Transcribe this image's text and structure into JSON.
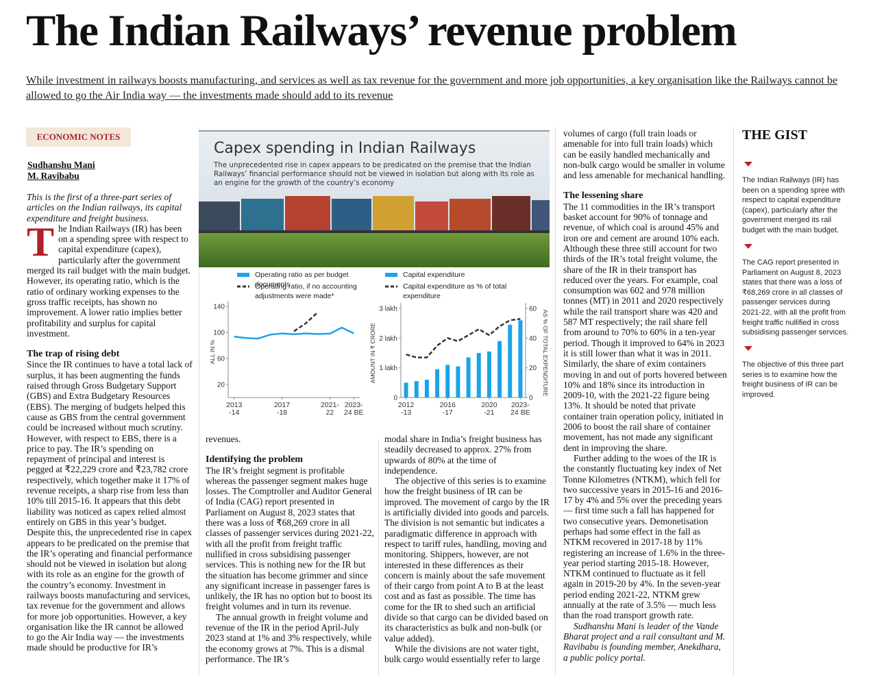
{
  "header": {
    "title": "The Indian Railways’ revenue problem",
    "subtitle": "While investment in railways boosts manufacturing, and services as well as tax revenue for the government and more job opportunities, a key organisation like the Railways cannot be allowed to go the Air India way — the investments made should add to its revenue"
  },
  "tag": "ECONOMIC NOTES",
  "authors": [
    "Sudhanshu Mani",
    "M. Ravibabu"
  ],
  "columns": [
    [
      {
        "italic": "This is the first of a three-part series of articles on the Indian railways, its capital expenditure and freight business."
      },
      {
        "dropcap": "T",
        "paragraph": "he Indian Railways (IR) has been on a spending spree with respect to capital expenditure (capex), particularly after the government merged its rail budget with the main budget. However, its operating ratio, which is the ratio of ordinary working expenses to the gross traffic receipts, has shown no improvement. A lower ratio implies better profitability and surplus for capital investment."
      },
      {
        "heading": "The trap of rising debt"
      },
      {
        "paragraph": "Since the IR continues to have a total lack of surplus, it has been augmenting the funds raised through Gross Budgetary Support (GBS) and Extra Budgetary Resources (EBS). The merging of budgets helped this cause as GBS from the central government could be increased without much scrutiny. However, with respect to EBS, there is a price to pay. The IR’s spending on repayment of principal and interest is pegged at ₹22,229 crore and ₹23,782 crore respectively, which together make it 17% of revenue receipts, a sharp rise from less than 10% till 2015-16. It appears that this debt liability was noticed as capex relied almost entirely on GBS in this year’s budget. Despite this, the unprecedented rise in capex appears to be predicated on the premise that the IR’s operating and financial performance should not be viewed in isolation but along with its role as an engine for the growth of the country’s economy. Investment in railways boosts manufacturing and services, tax revenue for the government and allows for more job opportunities. However, a key organisation like the IR cannot be allowed to go the Air India way — the investments made should be productive for IR’s"
      }
    ],
    [
      {
        "paragraph": "revenues."
      },
      {
        "heading": "Identifying the problem"
      },
      {
        "paragraph": "The IR’s freight segment is profitable whereas the passenger segment makes huge losses. The Comptroller and Auditor General of India (CAG) report presented in Parliament on August 8, 2023 states that there was a loss of ₹68,269 crore in all classes of passenger services during 2021-22, with all the profit from freight traffic nullified in cross subsidising passenger services. This is nothing new for the IR but the situation has become grimmer and since any significant increase in passenger fares is unlikely, the IR has no option but to boost its freight volumes and in turn its revenue."
      },
      {
        "paragraph": "The annual growth in freight volume and revenue of the IR in the period April-July 2023 stand at 1% and 3% respectively, while the economy grows at 7%. This is a dismal performance. The IR’s"
      }
    ],
    [
      {
        "paragraph": "modal share in India’s freight business has steadily decreased to approx. 27% from upwards of 80% at the time of independence."
      },
      {
        "paragraph": "The objective of this series is to examine how the freight business of IR can be improved. The movement of cargo by the IR is artificially divided into goods and parcels. The division is not semantic but indicates a paradigmatic difference in approach with respect to tariff rules, handling, moving and monitoring. Shippers, however, are not interested in these differences as their concern is mainly about the safe movement of their cargo from point A to B at the least cost and as fast as possible. The time has come for the IR to shed such an artificial divide so that cargo can be divided based on its characteristics as bulk and non-bulk (or value added)."
      },
      {
        "paragraph": "While the divisions are not water tight, bulk cargo would essentially refer to large"
      }
    ],
    [
      {
        "paragraph": "volumes of cargo (full train loads or amenable for into full train loads) which can be easily handled mechanically and non-bulk cargo would be smaller in volume and less amenable for mechanical handling."
      },
      {
        "heading": "The lessening share"
      },
      {
        "paragraph": "The 11 commodities in the IR’s transport basket account for 90% of tonnage and revenue, of which coal is around 45% and iron ore and cement are around 10% each. Although these three still account for two thirds of the IR’s total freight volume, the share of the IR in their transport has reduced over the years. For example, coal consumption was 602 and 978 million tonnes (MT) in 2011 and 2020 respectively while the rail transport share was 420 and 587 MT respectively; the rail share fell from around to 70% to 60% in a ten-year period. Though it improved to 64% in 2023 it is still lower than what it was in 2011. Similarly, the share of exim containers moving in and out of ports hovered between 10% and 18% since its introduction in 2009-10, with the 2021-22 figure being 13%. It should be noted that private container train operation policy, initiated in 2006 to boost the rail share of container movement, has not made any significant dent in improving the share."
      },
      {
        "paragraph": "Further adding to the woes of the IR is the constantly fluctuating key index of Net Tonne Kilometres (NTKM), which fell for two successive years in 2015-16 and 2016-17 by 4% and 5% over the preceding years — first time such a fall has happened for two consecutive years. Demonetisation perhaps had some effect in the fall as NTKM recovered in 2017-18 by 11% registering an increase of 1.6% in the three-year period starting 2015-18. However, NTKM continued to fluctuate as it fell again in 2019-20 by 4%. In the seven-year period ending 2021-22, NTKM grew annually at the rate of 3.5% — much less than the road transport growth rate."
      },
      {
        "italic": "Sudhanshu Mani is leader of the Vande Bharat project and a rail consultant and M. Ravibabu is founding member, Anekdhara, a public policy portal."
      }
    ]
  ],
  "gist": {
    "title": "THE GIST",
    "items": [
      "The Indian Railways (IR) has been on a spending spree with respect to capital expenditure (capex), particularly after the government merged its rail budget with the main budget.",
      "The CAG report presented in Parliament on August 8, 2023 states that there was a loss of ₹68,269 crore in all classes of passenger services during 2021-22, with all the profit from freight traffic nullified in cross subsidising passenger services.",
      "The objective of this three part series is to examine how the freight business of IR can be improved."
    ]
  },
  "chart": {
    "title": "Capex spending in Indian Railways",
    "subtitle": "The unprecedented rise in capex appears to be predicated on the premise that the Indian Railways’ financial performance should not be viewed in isolation but along with its role as an engine for the growth of the country’s economy",
    "left": {
      "type": "line",
      "ylabel": "ALL IN %",
      "categories": [
        "2013\n-14",
        null,
        null,
        null,
        "2017\n-18",
        null,
        null,
        null,
        "2021-\n22",
        null,
        "2023-\n24 BE"
      ],
      "ylim": [
        0,
        140
      ],
      "yticks": [
        20,
        60,
        100,
        140
      ],
      "series": [
        {
          "name": "Operating ratio as per budget documents",
          "color": "#1aa3e8",
          "style": "solid",
          "values": [
            93.6,
            91.3,
            90.5,
            96.5,
            98.4,
            97.3,
            98.4,
            97.5,
            98.1,
            107.4,
            98.5
          ]
        },
        {
          "name": "Operating ratio, if no accounting adjustments were made*",
          "color": "#333333",
          "style": "dashed",
          "values": [
            null,
            null,
            null,
            null,
            null,
            101.8,
            114.2,
            131.2,
            null,
            null,
            null
          ]
        }
      ]
    },
    "right": {
      "type": "bar",
      "ylabel": "AMOUNT IN ₹ CRORE",
      "y2label": "AS % OF TOTAL EXPENDITURE",
      "categories": [
        "2012\n-13",
        null,
        null,
        null,
        "2016\n-17",
        null,
        null,
        null,
        "2020\n-21",
        null,
        null,
        "2023-\n24 BE"
      ],
      "ylim": [
        0,
        300000
      ],
      "yticks": [
        0,
        {
          "value": 100000,
          "label": "1 lakh"
        },
        {
          "value": 200000,
          "label": "2 lakh"
        },
        {
          "value": 300000,
          "label": "3 lakh"
        }
      ],
      "y2lim": [
        0,
        60
      ],
      "y2ticks": [
        0,
        20,
        40,
        60
      ],
      "series": [
        {
          "name": "Capital expenditure",
          "color": "#1aa3e8",
          "style": "bar",
          "values": [
            50000,
            55000,
            60000,
            95000,
            110000,
            105000,
            135000,
            150000,
            155000,
            190000,
            245000,
            260000
          ]
        },
        {
          "name": "Capital expenditure as % of total expenditure",
          "color": "#333333",
          "style": "dashed",
          "axis": "y2",
          "values": [
            29,
            27,
            27,
            35,
            40,
            38,
            42,
            46,
            42,
            48,
            52,
            53
          ]
        }
      ]
    }
  }
}
